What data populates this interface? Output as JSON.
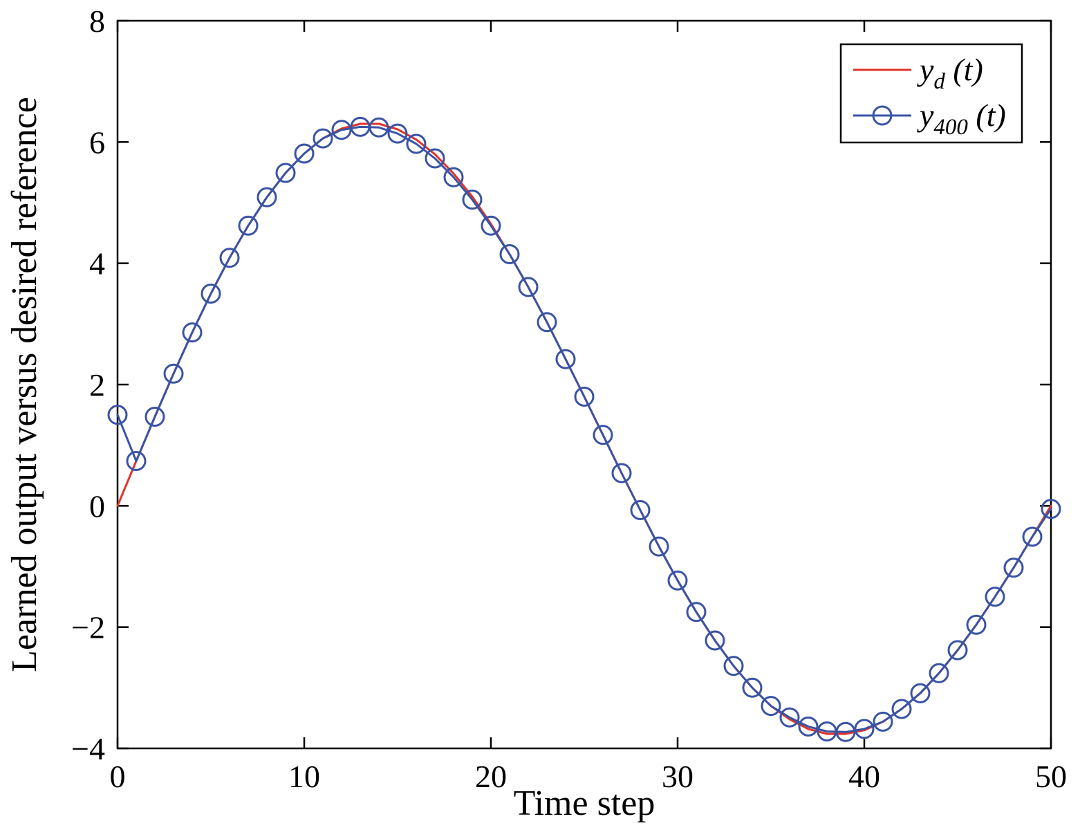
{
  "chart_data": {
    "type": "line",
    "title": "",
    "xlabel": "Time step",
    "ylabel": "Learned output versus desired reference",
    "xlim": [
      0,
      50
    ],
    "ylim": [
      -4,
      8
    ],
    "x_ticks": [
      0,
      10,
      20,
      30,
      40,
      50
    ],
    "y_ticks": [
      -4,
      -2,
      0,
      2,
      4,
      6,
      8
    ],
    "grid": false,
    "legend_position": "top-right",
    "x": [
      0,
      1,
      2,
      3,
      4,
      5,
      6,
      7,
      8,
      9,
      10,
      11,
      12,
      13,
      14,
      15,
      16,
      17,
      18,
      19,
      20,
      21,
      22,
      23,
      24,
      25,
      26,
      27,
      28,
      29,
      30,
      31,
      32,
      33,
      34,
      35,
      36,
      37,
      38,
      39,
      40,
      41,
      42,
      43,
      44,
      45,
      46,
      47,
      48,
      49,
      50
    ],
    "series": [
      {
        "name": "y_d(t)",
        "color": "#e0332a",
        "marker": "none",
        "line_width": 3,
        "values": [
          0.0,
          0.74,
          1.47,
          2.18,
          2.86,
          3.5,
          4.09,
          4.62,
          5.09,
          5.49,
          5.81,
          6.06,
          6.22,
          6.3,
          6.3,
          6.21,
          6.04,
          5.8,
          5.48,
          5.1,
          4.65,
          4.15,
          3.61,
          3.03,
          2.42,
          1.8,
          1.17,
          0.54,
          -0.07,
          -0.67,
          -1.23,
          -1.75,
          -2.22,
          -2.64,
          -3.0,
          -3.3,
          -3.52,
          -3.68,
          -3.76,
          -3.76,
          -3.7,
          -3.56,
          -3.35,
          -3.09,
          -2.76,
          -2.38,
          -1.96,
          -1.5,
          -1.02,
          -0.51,
          0.0
        ]
      },
      {
        "name": "y_400(t)",
        "color": "#3a53a4",
        "marker": "circle",
        "line_width": 3,
        "values": [
          1.5,
          0.74,
          1.47,
          2.18,
          2.86,
          3.5,
          4.09,
          4.62,
          5.09,
          5.49,
          5.81,
          6.06,
          6.2,
          6.25,
          6.24,
          6.14,
          5.97,
          5.73,
          5.42,
          5.05,
          4.62,
          4.15,
          3.61,
          3.03,
          2.42,
          1.8,
          1.17,
          0.54,
          -0.07,
          -0.67,
          -1.23,
          -1.75,
          -2.22,
          -2.64,
          -3.0,
          -3.3,
          -3.49,
          -3.64,
          -3.72,
          -3.73,
          -3.68,
          -3.56,
          -3.35,
          -3.09,
          -2.76,
          -2.38,
          -1.96,
          -1.5,
          -1.02,
          -0.51,
          -0.05
        ]
      }
    ],
    "legend": [
      {
        "main": "y",
        "sub": "d",
        "rest": " (t)"
      },
      {
        "main": "y",
        "sub": "400",
        "rest": " (t)"
      }
    ]
  },
  "colors": {
    "axis": "#000000",
    "background": "#ffffff",
    "reference_line": "#e0332a",
    "learned_line": "#3a53a4"
  }
}
